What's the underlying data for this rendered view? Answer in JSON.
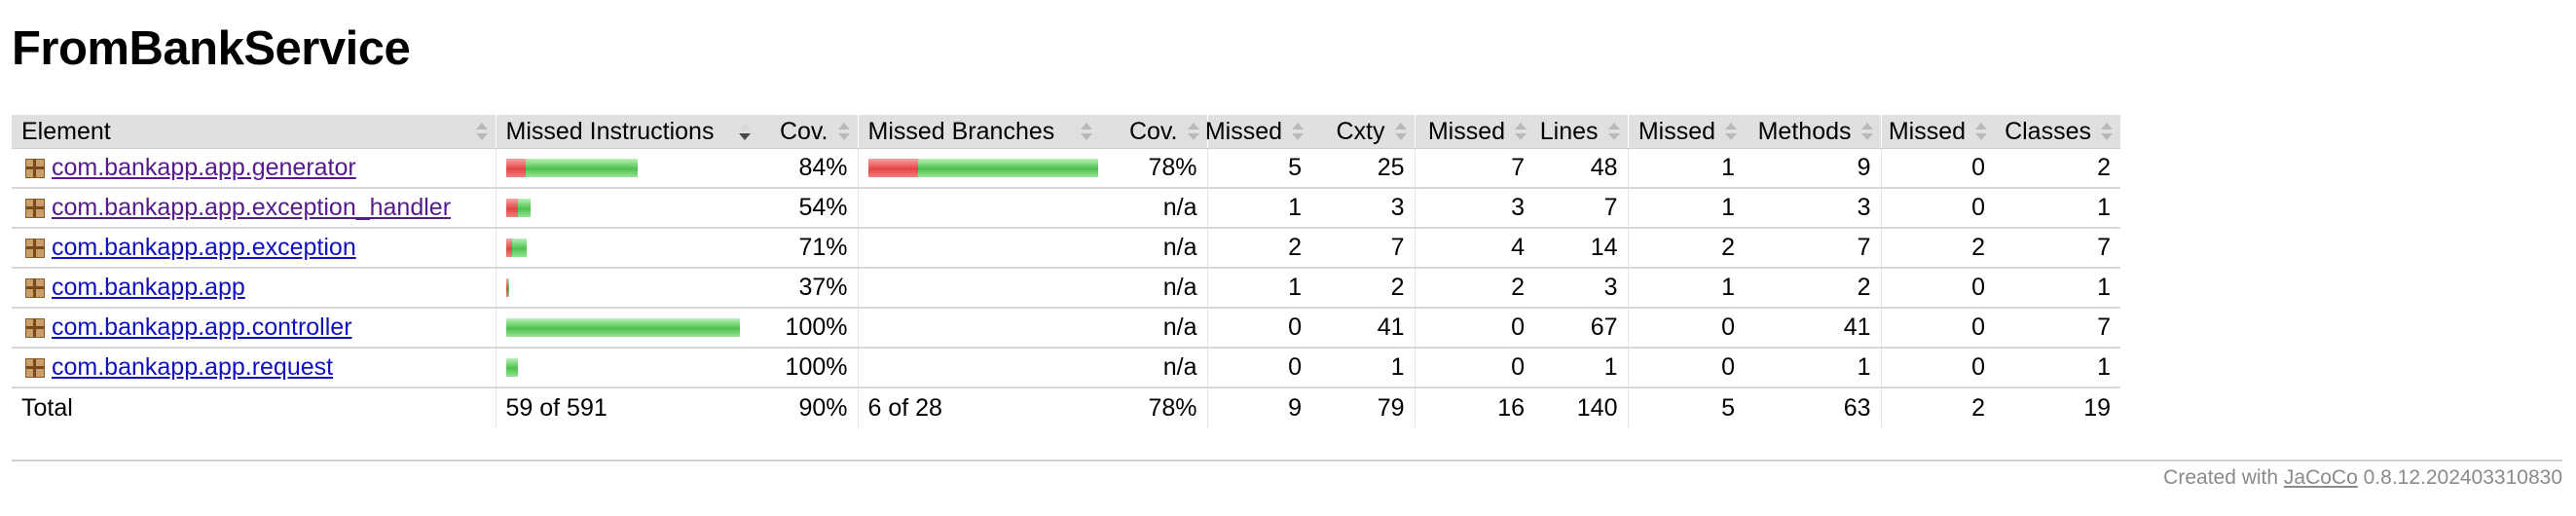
{
  "page": {
    "title": "FromBankService"
  },
  "table": {
    "headers": {
      "element": "Element",
      "missed_instructions": "Missed Instructions",
      "cov_instructions": "Cov.",
      "missed_branches": "Missed Branches",
      "cov_branches": "Cov.",
      "missed_cxty": "Missed",
      "cxty": "Cxty",
      "missed_lines": "Missed",
      "lines": "Lines",
      "missed_methods": "Missed",
      "methods": "Methods",
      "missed_classes": "Missed",
      "classes": "Classes"
    },
    "rows": [
      {
        "name": "com.bankapp.app.generator",
        "visited": true,
        "instr_cov": "84%",
        "branch_cov": "78%",
        "missed_cxty": "5",
        "cxty": "25",
        "missed_lines": "7",
        "lines": "48",
        "missed_methods": "1",
        "methods": "9",
        "missed_classes": "0",
        "classes": "2"
      },
      {
        "name": "com.bankapp.app.exception_handler",
        "visited": true,
        "instr_cov": "54%",
        "branch_cov": "n/a",
        "missed_cxty": "1",
        "cxty": "3",
        "missed_lines": "3",
        "lines": "7",
        "missed_methods": "1",
        "methods": "3",
        "missed_classes": "0",
        "classes": "1"
      },
      {
        "name": "com.bankapp.app.exception",
        "visited": false,
        "instr_cov": "71%",
        "branch_cov": "n/a",
        "missed_cxty": "2",
        "cxty": "7",
        "missed_lines": "4",
        "lines": "14",
        "missed_methods": "2",
        "methods": "7",
        "missed_classes": "2",
        "classes": "7"
      },
      {
        "name": "com.bankapp.app",
        "visited": false,
        "instr_cov": "37%",
        "branch_cov": "n/a",
        "missed_cxty": "1",
        "cxty": "2",
        "missed_lines": "2",
        "lines": "3",
        "missed_methods": "1",
        "methods": "2",
        "missed_classes": "0",
        "classes": "1"
      },
      {
        "name": "com.bankapp.app.controller",
        "visited": false,
        "instr_cov": "100%",
        "branch_cov": "n/a",
        "missed_cxty": "0",
        "cxty": "41",
        "missed_lines": "0",
        "lines": "67",
        "missed_methods": "0",
        "methods": "41",
        "missed_classes": "0",
        "classes": "7"
      },
      {
        "name": "com.bankapp.app.request",
        "visited": false,
        "instr_cov": "100%",
        "branch_cov": "n/a",
        "missed_cxty": "0",
        "cxty": "1",
        "missed_lines": "0",
        "lines": "1",
        "missed_methods": "0",
        "methods": "1",
        "missed_classes": "0",
        "classes": "1"
      }
    ],
    "instruction_bars": [
      {
        "missed_fraction": 0.085,
        "covered_fraction": 0.478
      },
      {
        "missed_fraction": 0.048,
        "covered_fraction": 0.056
      },
      {
        "missed_fraction": 0.025,
        "covered_fraction": 0.061
      },
      {
        "missed_fraction": 0.009,
        "covered_fraction": 0.006
      },
      {
        "missed_fraction": 0.0,
        "covered_fraction": 1.0
      },
      {
        "missed_fraction": 0.0,
        "covered_fraction": 0.048
      }
    ],
    "branch_bars": [
      {
        "missed_fraction": 0.214,
        "covered_fraction": 0.786
      },
      null,
      null,
      null,
      null,
      null
    ],
    "total": {
      "label": "Total",
      "missed_instructions": "59 of 591",
      "instr_cov": "90%",
      "missed_branches": "6 of 28",
      "branch_cov": "78%",
      "missed_cxty": "9",
      "cxty": "79",
      "missed_lines": "16",
      "lines": "140",
      "missed_methods": "5",
      "methods": "63",
      "missed_classes": "2",
      "classes": "19"
    }
  },
  "footer": {
    "prefix": "Created with",
    "link": "JaCoCo",
    "version": "0.8.12.202403310830"
  },
  "colors": {
    "missed_bar": "#e64444",
    "covered_bar": "#4cc24c",
    "header_bg": "#e0e0e0",
    "link": "#1010c0",
    "link_visited": "#551a8b"
  }
}
